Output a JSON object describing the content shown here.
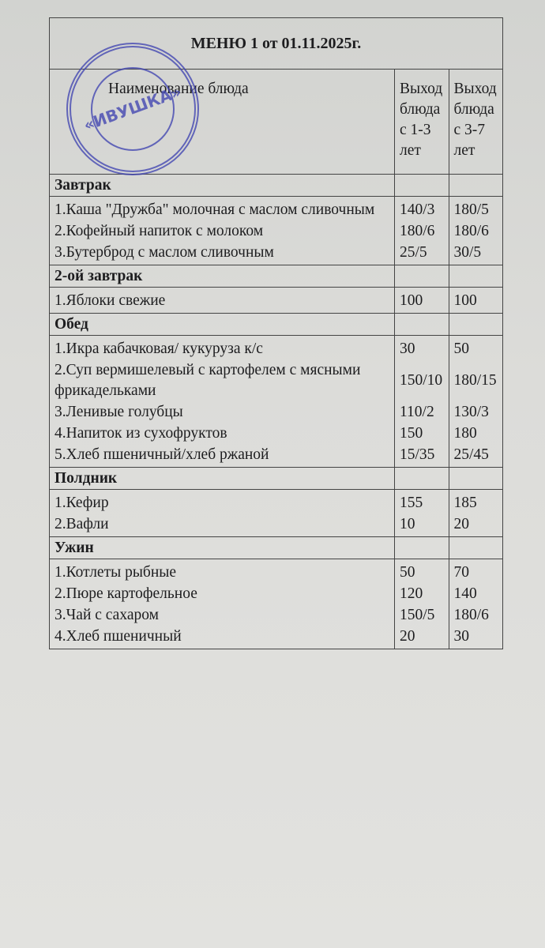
{
  "title": "МЕНЮ 1 от 01.11.2025г.",
  "header": {
    "name": "Наименование блюда",
    "col1": "Выход блюда с 1-3 лет",
    "col2": "Выход блюда с 3-7 лет"
  },
  "sections": [
    {
      "name": "Завтрак",
      "items": [
        {
          "name": "1.Каша \"Дружба\" молочная с маслом сливочным",
          "v1": "140/3",
          "v2": "180/5"
        },
        {
          "name": "2.Кофейный напиток с молоком",
          "v1": "180/6",
          "v2": "180/6"
        },
        {
          "name": "3.Бутерброд с маслом сливочным",
          "v1": "25/5",
          "v2": "30/5"
        }
      ]
    },
    {
      "name": "2-ой завтрак",
      "items": [
        {
          "name": "1.Яблоки свежие",
          "v1": "100",
          "v2": "100"
        }
      ]
    },
    {
      "name": "Обед",
      "items": [
        {
          "name": "1.Икра кабачковая/ кукуруза к/с",
          "v1": "30",
          "v2": "50"
        },
        {
          "name": "2.Суп вермишелевый с картофелем с мясными фрикадельками",
          "v1": "150/10",
          "v2": "180/15"
        },
        {
          "name": "3.Ленивые голубцы",
          "v1": "110/2",
          "v2": "130/3"
        },
        {
          "name": "4.Напиток из сухофруктов",
          "v1": "150",
          "v2": "180"
        },
        {
          "name": "5.Хлеб пшеничный/хлеб ржаной",
          "v1": "15/35",
          "v2": "25/45"
        }
      ]
    },
    {
      "name": "Полдник",
      "items": [
        {
          "name": "1.Кефир",
          "v1": "155",
          "v2": "185"
        },
        {
          "name": "2.Вафли",
          "v1": "10",
          "v2": "20"
        }
      ]
    },
    {
      "name": "Ужин",
      "items": [
        {
          "name": "1.Котлеты рыбные",
          "v1": "50",
          "v2": "70"
        },
        {
          "name": "2.Пюре картофельное",
          "v1": "120",
          "v2": "140"
        },
        {
          "name": "3.Чай с сахаром",
          "v1": "150/5",
          "v2": "180/6"
        },
        {
          "name": "4.Хлеб пшеничный",
          "v1": "20",
          "v2": "30"
        }
      ]
    }
  ],
  "stamp": {
    "text": "«ИВУШКА»",
    "color": "#3b3fb0"
  }
}
